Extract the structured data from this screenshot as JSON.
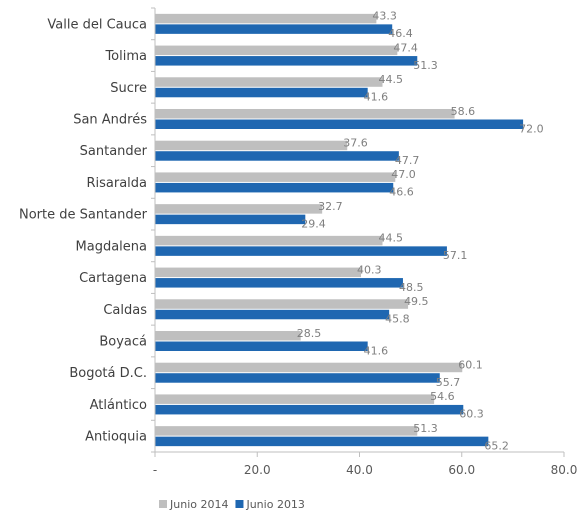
{
  "chart_data": {
    "type": "bar",
    "orientation": "horizontal",
    "categories": [
      "Valle del Cauca",
      "Tolima",
      "Sucre",
      "San Andrés",
      "Santander",
      "Risaralda",
      "Norte de Santander",
      "Magdalena",
      "Cartagena",
      "Caldas",
      "Boyacá",
      "Bogotá D.C.",
      "Atlántico",
      "Antioquia"
    ],
    "series": [
      {
        "name": "Junio 2014",
        "color": "#bfbfbf",
        "values": [
          43.3,
          47.4,
          44.5,
          58.6,
          37.6,
          47.0,
          32.7,
          44.5,
          40.3,
          49.5,
          28.5,
          60.1,
          54.6,
          51.3
        ],
        "labels": [
          "43.3",
          "47.4",
          "44.5",
          "58.6",
          "37.6",
          "47.0",
          "32.7",
          "44.5",
          "40.3",
          "49.5",
          "28.5",
          "60.1",
          "54.6",
          "51.3"
        ]
      },
      {
        "name": "Junio 2013",
        "color": "#1f67b1",
        "values": [
          46.4,
          51.3,
          41.6,
          72.0,
          47.7,
          46.6,
          29.4,
          57.1,
          48.5,
          45.8,
          41.6,
          55.7,
          60.3,
          65.2
        ],
        "labels": [
          "46.4",
          "51.3",
          "41.6",
          "72.0",
          "47.7",
          "46.6",
          "29.4",
          "57.1",
          "48.5",
          "45.8",
          "41.6",
          "55.7",
          "60.3",
          "65.2"
        ]
      }
    ],
    "xlim": [
      0,
      80
    ],
    "xticks": [
      0,
      20,
      40,
      60,
      80
    ],
    "xtick_labels": [
      "-",
      "20.0",
      "40.0",
      "60.0",
      "80.0"
    ],
    "grid": false,
    "legend_position": "bottom-left"
  }
}
